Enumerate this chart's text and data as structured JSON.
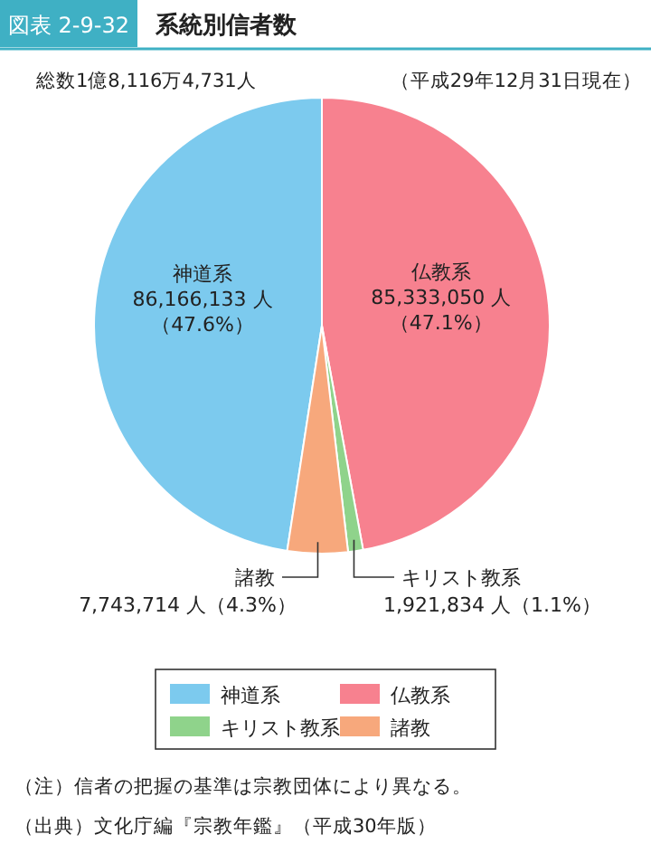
{
  "chart_data": {
    "type": "pie",
    "title": "系統別信者数",
    "subtitle": "総数1億8,116万4,731人",
    "annotations": [
      "図表 2-9-32",
      "（平成29年12月31日現在）",
      "（注）信者の把握の基準は宗教団体により異なる。",
      "（出典）文化庁編『宗教年鑑』（平成30年版）"
    ],
    "categories": [
      "神道系",
      "仏教系",
      "キリスト教系",
      "諸教"
    ],
    "values": [
      86166133,
      85333050,
      1921834,
      7743714
    ],
    "value_labels": [
      "86,166,133 人（47.6%）",
      "85,333,050 人（47.1%）",
      "1,921,834 人（1.1%）",
      "7,743,714 人（4.3%）"
    ],
    "colors": [
      "#7ccaee",
      "#f7818f",
      "#8fd38b",
      "#f7a87c"
    ],
    "legend": "bottom"
  }
}
